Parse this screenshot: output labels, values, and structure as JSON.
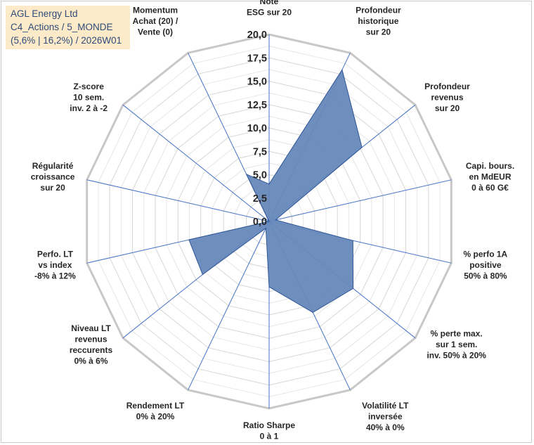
{
  "chart_data": {
    "type": "radar",
    "title": [
      "AGL Energy Ltd",
      "C4_Actions / 5_MONDE",
      "(5,6% | 16,2%) / 2026W01"
    ],
    "r_range": [
      0,
      20
    ],
    "r_ticks": [
      "0,0",
      "2,5",
      "5,0",
      "7,5",
      "10,0",
      "12,5",
      "15,0",
      "17,5",
      "20,0"
    ],
    "grid": true,
    "fill_color": "#6688bb",
    "stroke_color": "#2f5597",
    "spoke_color": "#4472c4",
    "grid_color": "#d9d9d9",
    "axes": [
      {
        "label": [
          "Note",
          "ESG sur 20"
        ],
        "value": 4.0
      },
      {
        "label": [
          "Profondeur",
          "historique",
          "sur 20"
        ],
        "value": 18.0
      },
      {
        "label": [
          "Profondeur",
          "revenus",
          "sur 20"
        ],
        "value": 12.7
      },
      {
        "label": [
          "Capi. bours.",
          "en MdEUR",
          "0 à 60 G€"
        ],
        "value": 0.7
      },
      {
        "label": [
          "% perfo 1A",
          "positive",
          "50% à 80%"
        ],
        "value": 9.2
      },
      {
        "label": [
          "% perte max.",
          "sur 1 sem.",
          "inv. 50% à 20%"
        ],
        "value": 11.5
      },
      {
        "label": [
          "Volatilité LT",
          "inversée",
          "40% à 0%"
        ],
        "value": 10.8
      },
      {
        "label": [
          "Ratio Sharpe",
          "0 à 1"
        ],
        "value": 7.0
      },
      {
        "label": [
          "Rendement LT",
          "0% à 20%"
        ],
        "value": 0.8
      },
      {
        "label": [
          "Niveau LT",
          "revenus",
          "reccurents",
          "0% à 6%"
        ],
        "value": 9.1
      },
      {
        "label": [
          "Perfo. LT",
          "vs index",
          "-8% à 12%"
        ],
        "value": 8.8
      },
      {
        "label": [
          "Régularité",
          "croissance",
          "sur 20"
        ],
        "value": 0.0
      },
      {
        "label": [
          "Z-score",
          "10 sem.",
          "inv. 2 à -2"
        ],
        "value": 0.0
      },
      {
        "label": [
          "Momentum",
          "Achat (20) /",
          "Vente (0)"
        ],
        "value": 5.6
      }
    ]
  }
}
